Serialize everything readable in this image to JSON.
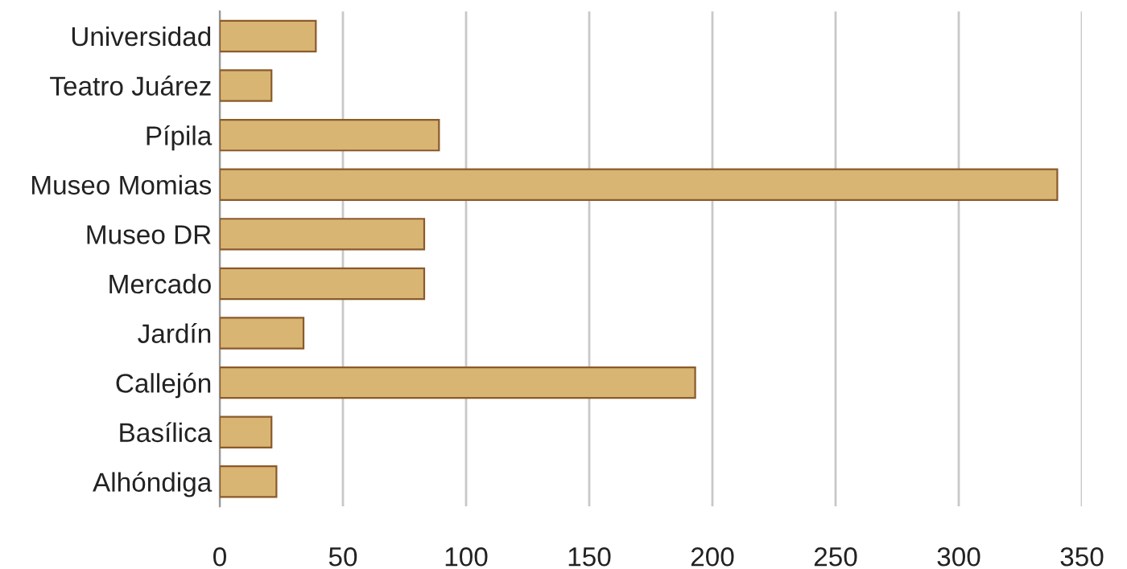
{
  "chart_data": {
    "type": "bar",
    "orientation": "horizontal",
    "categories": [
      "Universidad",
      "Teatro Juárez",
      "Pípila",
      "Museo Momias",
      "Museo DR",
      "Mercado",
      "Jardín",
      "Callejón",
      "Basílica",
      "Alhóndiga"
    ],
    "values": [
      39,
      21,
      89,
      340,
      83,
      83,
      34,
      193,
      21,
      23
    ],
    "color": "#d8b573",
    "xlim": [
      0,
      350
    ],
    "xticks": [
      0,
      50,
      100,
      150,
      200,
      250,
      300,
      350
    ],
    "grid": "x"
  }
}
